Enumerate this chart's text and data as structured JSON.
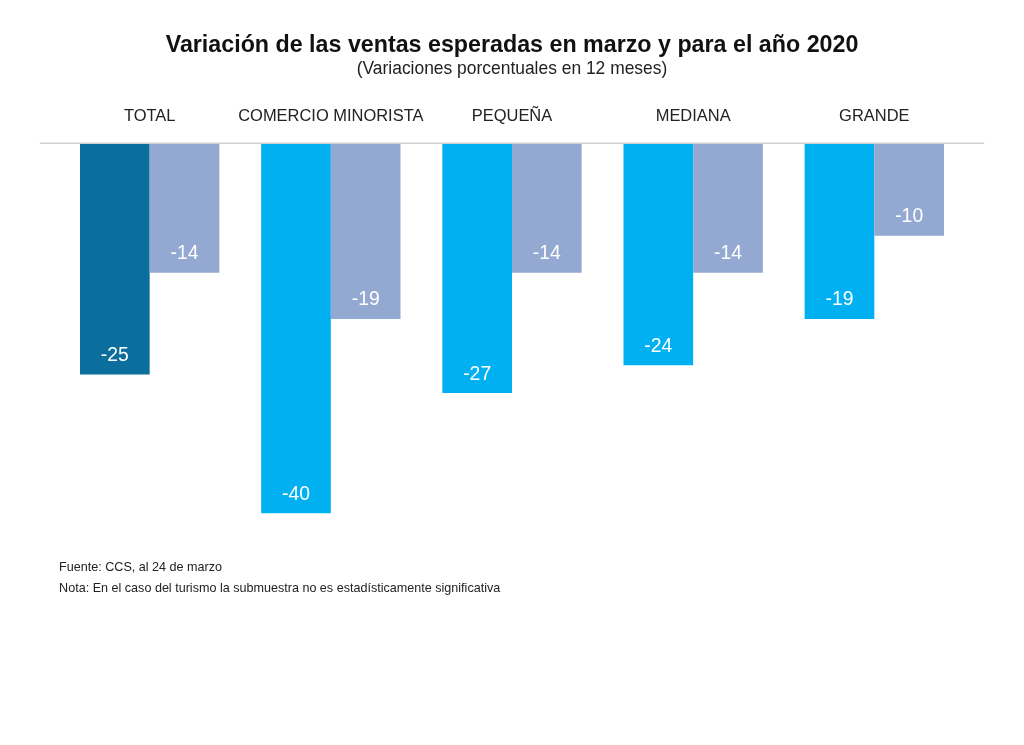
{
  "chart_data": {
    "type": "bar",
    "title": "Variación de las ventas esperadas en marzo y para el año 2020",
    "subtitle": "(Variaciones porcentuales en 12 meses)",
    "categories": [
      "TOTAL",
      "COMERCIO MINORISTA",
      "PEQUEÑA",
      "MEDIANA",
      "GRANDE"
    ],
    "series": [
      {
        "colors": [
          "#0b6e9c",
          "#00b0f0",
          "#00b0f0",
          "#00b0f0",
          "#00b0f0"
        ],
        "values": [
          -25,
          -40,
          -27,
          -24,
          -19
        ]
      },
      {
        "color": "#94a9d2",
        "values": [
          -14,
          -19,
          -14,
          -14,
          -10
        ]
      }
    ],
    "data_labels": true,
    "grid": false,
    "annotations": [
      "Fuente: CCS, al 24 de marzo",
      "Nota: En el caso del turismo la submuestra no es estadísticamente significativa"
    ]
  }
}
